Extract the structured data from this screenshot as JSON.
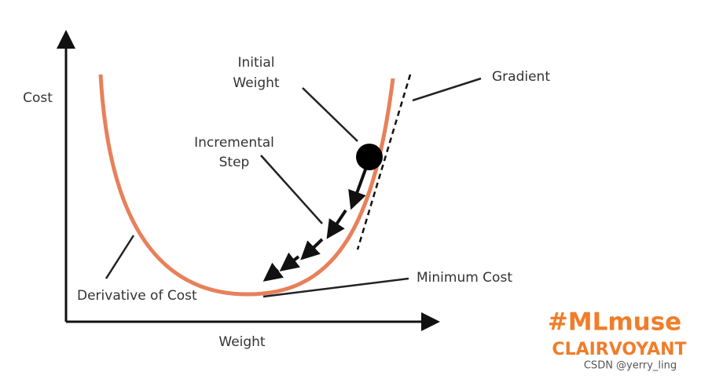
{
  "axes": {
    "y_label": "Cost",
    "x_label": "Weight"
  },
  "annotations": {
    "initial_weight": [
      "Initial",
      "Weight"
    ],
    "incremental_step": [
      "Incremental",
      "Step"
    ],
    "gradient": "Gradient",
    "minimum_cost": "Minimum Cost",
    "derivative_of_cost": "Derivative of Cost"
  },
  "branding": {
    "hashtag": "#MLmuse",
    "brand": "CLAIRVOYANT",
    "watermark": "CSDN @yerry_ling"
  }
}
